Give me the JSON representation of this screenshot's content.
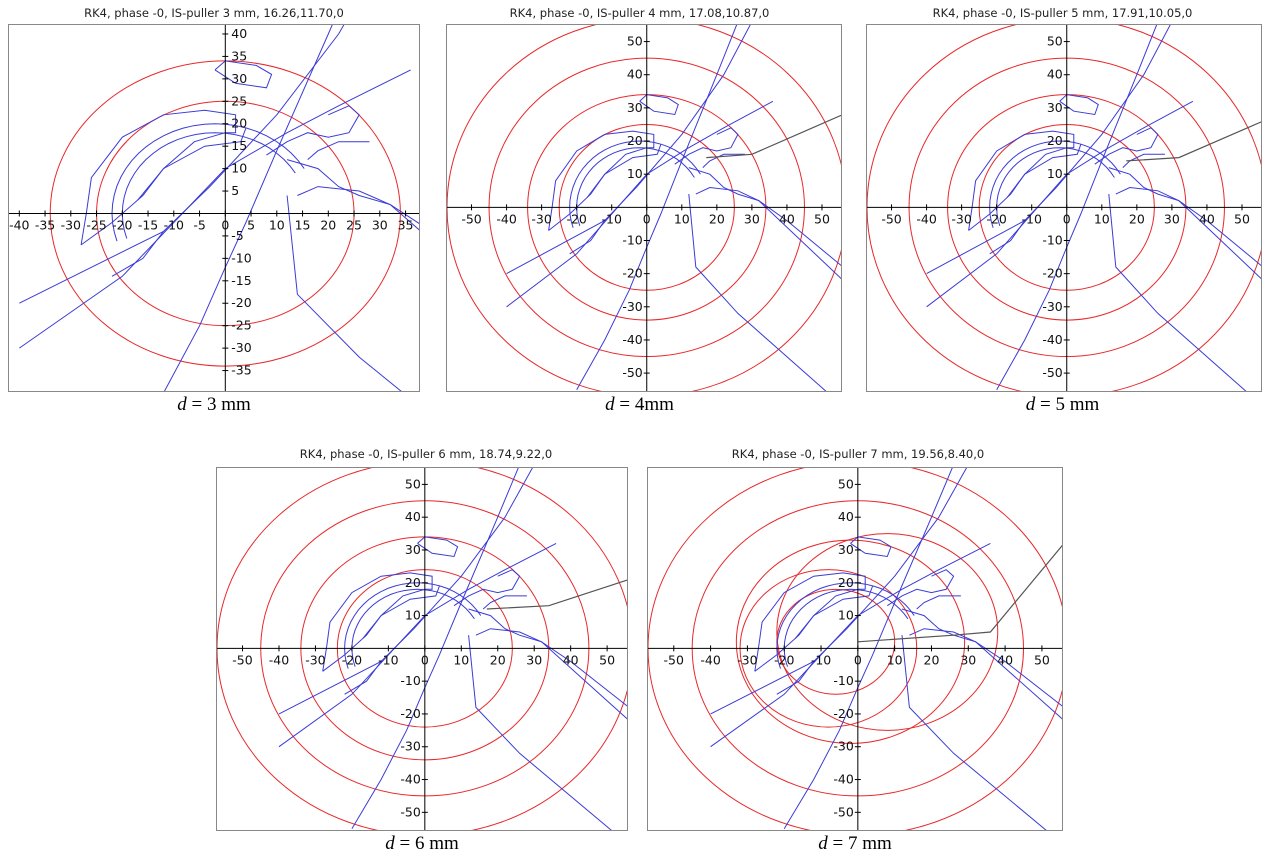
{
  "figure": {
    "panels": [
      {
        "title": "RK4, phase -0, IS-puller 3 mm, 16.26,11.70,0",
        "caption_var": "d",
        "caption_rest": " = 3 mm"
      },
      {
        "title": "RK4, phase -0, IS-puller 4 mm, 17.08,10.87,0",
        "caption_var": "d",
        "caption_rest": " = 4mm"
      },
      {
        "title": "RK4, phase -0, IS-puller 5 mm, 17.91,10.05,0",
        "caption_var": "d",
        "caption_rest": " = 5 mm"
      },
      {
        "title": "RK4, phase -0, IS-puller 6 mm, 18.74,9.22,0",
        "caption_var": "d",
        "caption_rest": " = 6 mm"
      },
      {
        "title": "RK4, phase -0, IS-puller 7 mm, 19.56,8.40,0",
        "caption_var": "d",
        "caption_rest": " = 7 mm"
      }
    ]
  },
  "chart_data": [
    {
      "type": "line",
      "title": "RK4, phase -0, IS-puller 3 mm, 16.26,11.70,0",
      "xlim": [
        -42,
        38
      ],
      "ylim": [
        -40,
        42
      ],
      "xticks": [
        -40,
        -35,
        -30,
        -25,
        -20,
        -15,
        -10,
        -5,
        0,
        5,
        10,
        15,
        20,
        25,
        30,
        35
      ],
      "yticks": [
        -35,
        -30,
        -25,
        -20,
        -15,
        -10,
        -5,
        5,
        10,
        15,
        20,
        25,
        30,
        35,
        40
      ],
      "xtick_labels": [
        "-40",
        "-35",
        "-30",
        "-25",
        "-20",
        "-15",
        "-10",
        "-5",
        "0",
        "5",
        "10",
        "15",
        "20",
        "25",
        "30",
        "35"
      ],
      "ytick_labels": [
        "-35",
        "-30",
        "-25",
        "-20",
        "-15",
        "-10",
        "-5",
        "5",
        "10",
        "15",
        "20",
        "25",
        "30",
        "35",
        "40"
      ],
      "orbits": [
        {
          "r": 25
        },
        {
          "r": 34
        }
      ],
      "grid": false,
      "colors": {
        "electrodes": "#3b3bd6",
        "orbits": "#e8282a",
        "extraction": "#555555"
      }
    },
    {
      "type": "line",
      "title": "RK4, phase -0, IS-puller 4 mm, 17.08,10.87,0",
      "xlim": [
        -57,
        56
      ],
      "ylim": [
        -56,
        55
      ],
      "xticks": [
        -50,
        -40,
        -30,
        -20,
        -10,
        0,
        10,
        20,
        30,
        40,
        50
      ],
      "yticks": [
        -50,
        -40,
        -30,
        -20,
        -10,
        10,
        20,
        30,
        40,
        50
      ],
      "xtick_labels": [
        "-50",
        "-40",
        "-30",
        "-20",
        "-10",
        "0",
        "10",
        "20",
        "30",
        "40",
        "50"
      ],
      "ytick_labels": [
        "-50",
        "-40",
        "-30",
        "-20",
        "-10",
        "10",
        "20",
        "30",
        "40",
        "50"
      ],
      "orbits": [
        {
          "r": 25
        },
        {
          "r": 34
        },
        {
          "r": 45
        },
        {
          "r": 57
        }
      ],
      "extraction": [
        [
          17,
          15
        ],
        [
          30,
          16
        ],
        [
          56,
          28
        ]
      ],
      "grid": false
    },
    {
      "type": "line",
      "title": "RK4, phase -0, IS-puller 5 mm, 17.91,10.05,0",
      "xlim": [
        -57,
        56
      ],
      "ylim": [
        -56,
        55
      ],
      "xticks": [
        -50,
        -40,
        -30,
        -20,
        -10,
        0,
        10,
        20,
        30,
        40,
        50
      ],
      "yticks": [
        -50,
        -40,
        -30,
        -20,
        -10,
        10,
        20,
        30,
        40,
        50
      ],
      "xtick_labels": [
        "-50",
        "-40",
        "-30",
        "-20",
        "-10",
        "0",
        "10",
        "20",
        "30",
        "40",
        "50"
      ],
      "ytick_labels": [
        "-50",
        "-40",
        "-30",
        "-20",
        "-10",
        "10",
        "20",
        "30",
        "40",
        "50"
      ],
      "orbits": [
        {
          "r": 25
        },
        {
          "r": 34
        },
        {
          "r": 45
        },
        {
          "r": 57
        }
      ],
      "extraction": [
        [
          17,
          14
        ],
        [
          32,
          15
        ],
        [
          56,
          26
        ]
      ],
      "grid": false
    },
    {
      "type": "line",
      "title": "RK4, phase -0, IS-puller 6 mm, 18.74,9.22,0",
      "xlim": [
        -57,
        56
      ],
      "ylim": [
        -56,
        55
      ],
      "xticks": [
        -50,
        -40,
        -30,
        -20,
        -10,
        0,
        10,
        20,
        30,
        40,
        50
      ],
      "yticks": [
        -50,
        -40,
        -30,
        -20,
        -10,
        10,
        20,
        30,
        40,
        50
      ],
      "xtick_labels": [
        "-50",
        "-40",
        "-30",
        "-20",
        "-10",
        "0",
        "10",
        "20",
        "30",
        "40",
        "50"
      ],
      "ytick_labels": [
        "-50",
        "-40",
        "-30",
        "-20",
        "-10",
        "10",
        "20",
        "30",
        "40",
        "50"
      ],
      "orbits": [
        {
          "r": 24
        },
        {
          "r": 34
        },
        {
          "r": 45
        },
        {
          "r": 57
        }
      ],
      "extraction": [
        [
          17,
          12
        ],
        [
          34,
          13
        ],
        [
          56,
          21
        ]
      ],
      "grid": false
    },
    {
      "type": "line",
      "title": "RK4, phase -0, IS-puller 7 mm, 19.56,8.40,0",
      "xlim": [
        -57,
        56
      ],
      "ylim": [
        -56,
        55
      ],
      "xticks": [
        -50,
        -40,
        -30,
        -20,
        -10,
        0,
        10,
        20,
        30,
        40,
        50
      ],
      "yticks": [
        -50,
        -40,
        -30,
        -20,
        -10,
        10,
        20,
        30,
        40,
        50
      ],
      "xtick_labels": [
        "-50",
        "-40",
        "-30",
        "-20",
        "-10",
        "0",
        "10",
        "20",
        "30",
        "40",
        "50"
      ],
      "ytick_labels": [
        "-50",
        "-40",
        "-30",
        "-20",
        "-10",
        "10",
        "20",
        "30",
        "40",
        "50"
      ],
      "orbits": [
        {
          "r": 45,
          "cx": 0,
          "cy": 0
        },
        {
          "r": 57,
          "cx": 0,
          "cy": 0
        },
        {
          "r": 16,
          "cx": -6,
          "cy": 2
        },
        {
          "r": 24,
          "cx": -8,
          "cy": 0
        },
        {
          "r": 31,
          "cx": -2,
          "cy": 2
        },
        {
          "r": 30,
          "cx": 8,
          "cy": 5
        }
      ],
      "extraction": [
        [
          0,
          2
        ],
        [
          26,
          4
        ],
        [
          36,
          5
        ],
        [
          56,
          32
        ]
      ],
      "grid": false
    }
  ]
}
